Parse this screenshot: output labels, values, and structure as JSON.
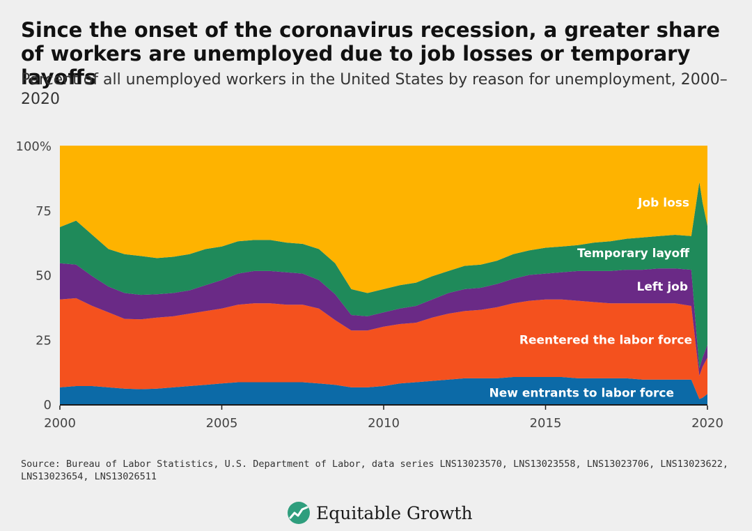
{
  "title": "Since the onset of the coronavirus recession, a greater share of workers are unemployed due to job losses or temporary layoffs",
  "subtitle": "Percent of all unemployed workers in the United States by reason for unemployment, 2000–2020",
  "source": "Source: Bureau of Labor Statistics, U.S. Department of Labor, data series LNS13023570, LNS13023558, LNS13023706, LNS13023622, LNS13023654, LNS13026511",
  "brand": {
    "name": "Equitable Growth",
    "logo_icon": "growth-line-icon"
  },
  "chart_data": {
    "type": "area",
    "stacked": true,
    "x_axis": {
      "range": [
        2000,
        2020
      ],
      "ticks": [
        2000,
        2005,
        2010,
        2015,
        2020
      ],
      "tick_labels": [
        "2000",
        "2005",
        "2010",
        "2015",
        "2020"
      ]
    },
    "y_axis": {
      "range": [
        0,
        100
      ],
      "ticks": [
        0,
        25,
        50,
        75,
        100
      ],
      "tick_labels": [
        "0",
        "25",
        "50",
        "75",
        "100%"
      ]
    },
    "grid": false,
    "x": [
      2000.0,
      2000.5,
      2001.0,
      2001.5,
      2002.0,
      2002.5,
      2003.0,
      2003.5,
      2004.0,
      2004.5,
      2005.0,
      2005.5,
      2006.0,
      2006.5,
      2007.0,
      2007.5,
      2008.0,
      2008.5,
      2009.0,
      2009.5,
      2010.0,
      2010.5,
      2011.0,
      2011.5,
      2012.0,
      2012.5,
      2013.0,
      2013.5,
      2014.0,
      2014.5,
      2015.0,
      2015.5,
      2016.0,
      2016.5,
      2017.0,
      2017.5,
      2018.0,
      2018.5,
      2019.0,
      2019.5,
      2019.75,
      2019.85,
      2020.0
    ],
    "series": [
      {
        "name": "New entrants to labor force",
        "color": "#0c6aa7",
        "values": [
          6.5,
          7,
          7,
          6.5,
          6,
          5.8,
          6,
          6.5,
          7,
          7.5,
          8,
          8.5,
          8.5,
          8.5,
          8.5,
          8.5,
          8,
          7.5,
          6.5,
          6.5,
          7,
          8,
          8.5,
          9,
          9.5,
          10,
          10,
          10,
          10.5,
          10.5,
          10.5,
          10.5,
          10,
          10,
          10,
          10,
          9.5,
          9.5,
          9.5,
          9.5,
          2,
          2.5,
          4
        ]
      },
      {
        "name": "Reentered the labor force",
        "color": "#f4511e",
        "values": [
          34,
          34,
          31,
          29,
          27,
          27,
          27.5,
          27.5,
          28,
          28.5,
          29,
          30,
          30.5,
          30.5,
          30,
          30,
          29,
          25,
          22,
          22,
          23,
          23,
          23,
          24.5,
          25.5,
          26,
          26.5,
          27.5,
          28.5,
          29.5,
          30,
          30,
          30,
          29.5,
          29,
          29,
          29.5,
          29.5,
          29.5,
          28.5,
          9,
          12,
          14
        ]
      },
      {
        "name": "Left job",
        "color": "#6a2a86",
        "values": [
          14,
          13,
          11.5,
          10,
          10,
          9.5,
          9,
          9,
          9,
          10,
          11,
          12,
          12.5,
          12.5,
          12.5,
          12,
          11,
          10,
          6,
          5.5,
          5.5,
          6,
          6.5,
          7,
          8,
          8.5,
          8.5,
          9,
          9.5,
          10,
          10,
          10.5,
          11.5,
          12,
          12.5,
          13,
          13,
          13.5,
          13.5,
          14,
          3,
          3.5,
          5
        ]
      },
      {
        "name": "Temporary layoff",
        "color": "#1f8a5a",
        "values": [
          14,
          17,
          16,
          14.5,
          15,
          15,
          14,
          14,
          14,
          14,
          13,
          12.5,
          12,
          12,
          11.5,
          11.5,
          12,
          12,
          10,
          9,
          9,
          9,
          9,
          9,
          8.5,
          9,
          9,
          9,
          9.5,
          9.5,
          10,
          10,
          10,
          11,
          11.5,
          12,
          12.5,
          12.5,
          13,
          13,
          72,
          60,
          46
        ]
      },
      {
        "name": "Job loss",
        "color": "#feb300",
        "values": [
          31.5,
          29,
          34.5,
          40,
          42,
          42.7,
          43.5,
          43,
          42,
          40,
          39,
          37,
          36.5,
          36.5,
          37.5,
          38,
          40,
          45.5,
          55.5,
          57,
          55.5,
          54,
          53,
          50.5,
          48.5,
          46.5,
          46,
          44.5,
          42,
          40.5,
          39.5,
          39,
          38.5,
          37.5,
          37,
          36,
          35.5,
          35,
          34.5,
          35,
          14,
          22,
          31
        ]
      }
    ],
    "label_text": [
      "Job loss",
      "Temporary layoff",
      "Left job",
      "Reentered the labor force",
      "New entrants to labor force"
    ]
  }
}
